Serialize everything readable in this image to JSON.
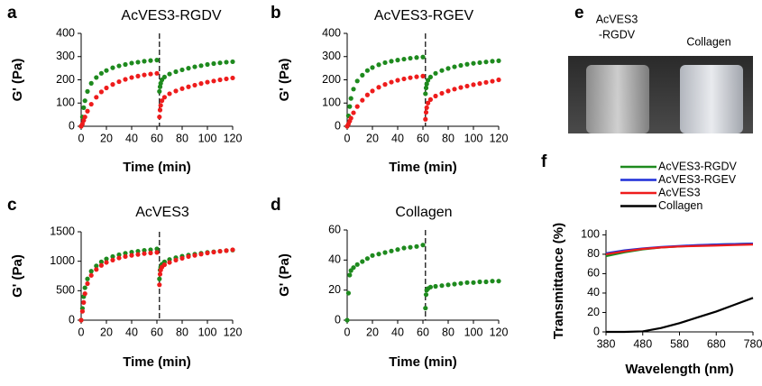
{
  "chart_data": [
    {
      "type": "scatter",
      "panel": "a",
      "title": "AcVES3-RGDV",
      "xlabel": "Time (min)",
      "ylabel": "G' (Pa)",
      "xlim": [
        0,
        120
      ],
      "ylim": [
        0,
        400
      ],
      "xticks": [
        0,
        20,
        40,
        60,
        80,
        100,
        120
      ],
      "yticks": [
        0,
        100,
        200,
        300,
        400
      ],
      "vline": 62,
      "x": [
        0,
        1,
        2,
        3,
        5,
        8,
        12,
        16,
        20,
        25,
        30,
        35,
        40,
        45,
        50,
        55,
        60,
        62,
        62.5,
        63,
        64,
        66,
        70,
        75,
        80,
        85,
        90,
        95,
        100,
        105,
        110,
        115,
        120
      ],
      "series": [
        {
          "color": "#1e8a1e",
          "values": [
            0,
            40,
            80,
            110,
            150,
            185,
            210,
            228,
            240,
            252,
            260,
            266,
            272,
            276,
            280,
            283,
            285,
            150,
            170,
            185,
            200,
            212,
            225,
            235,
            243,
            250,
            256,
            261,
            266,
            270,
            273,
            276,
            278
          ]
        },
        {
          "color": "#ee1c1c",
          "values": [
            0,
            10,
            25,
            40,
            65,
            95,
            125,
            148,
            165,
            180,
            192,
            202,
            210,
            216,
            221,
            225,
            228,
            40,
            70,
            90,
            110,
            125,
            140,
            152,
            162,
            170,
            177,
            184,
            190,
            195,
            200,
            204,
            208
          ]
        }
      ]
    },
    {
      "type": "scatter",
      "panel": "b",
      "title": "AcVES3-RGEV",
      "xlabel": "Time (min)",
      "ylabel": "G' (Pa)",
      "xlim": [
        0,
        120
      ],
      "ylim": [
        0,
        400
      ],
      "xticks": [
        0,
        20,
        40,
        60,
        80,
        100,
        120
      ],
      "yticks": [
        0,
        100,
        200,
        300,
        400
      ],
      "vline": 62,
      "x": [
        0,
        1,
        2,
        3,
        5,
        8,
        12,
        16,
        20,
        25,
        30,
        35,
        40,
        45,
        50,
        55,
        60,
        62,
        62.5,
        63,
        64,
        66,
        70,
        75,
        80,
        85,
        90,
        95,
        100,
        105,
        110,
        115,
        120
      ],
      "series": [
        {
          "color": "#1e8a1e",
          "values": [
            0,
            45,
            85,
            120,
            160,
            195,
            220,
            240,
            253,
            265,
            274,
            280,
            285,
            289,
            293,
            296,
            298,
            140,
            165,
            182,
            198,
            212,
            228,
            240,
            249,
            256,
            262,
            267,
            271,
            274,
            277,
            280,
            282
          ]
        },
        {
          "color": "#ee1c1c",
          "values": [
            0,
            10,
            22,
            35,
            58,
            85,
            112,
            135,
            152,
            168,
            180,
            190,
            198,
            204,
            209,
            213,
            216,
            30,
            60,
            80,
            100,
            115,
            130,
            142,
            152,
            160,
            167,
            173,
            179,
            184,
            189,
            194,
            200
          ]
        }
      ]
    },
    {
      "type": "scatter",
      "panel": "c",
      "title": "AcVES3",
      "xlabel": "Time (min)",
      "ylabel": "G' (Pa)",
      "xlim": [
        0,
        120
      ],
      "ylim": [
        0,
        1500
      ],
      "xticks": [
        0,
        20,
        40,
        60,
        80,
        100,
        120
      ],
      "yticks": [
        0,
        500,
        1000,
        1500
      ],
      "vline": 62,
      "x": [
        0,
        1,
        2,
        3,
        5,
        8,
        12,
        16,
        20,
        25,
        30,
        35,
        40,
        45,
        50,
        55,
        60,
        62,
        62.5,
        63,
        64,
        66,
        70,
        75,
        80,
        85,
        90,
        95,
        100,
        105,
        110,
        115,
        120
      ],
      "series": [
        {
          "color": "#1e8a1e",
          "values": [
            0,
            200,
            400,
            550,
            700,
            830,
            920,
            990,
            1040,
            1080,
            1110,
            1135,
            1155,
            1170,
            1185,
            1195,
            1210,
            700,
            850,
            900,
            950,
            990,
            1030,
            1060,
            1085,
            1105,
            1120,
            1135,
            1150,
            1160,
            1170,
            1180,
            1190
          ]
        },
        {
          "color": "#ee1c1c",
          "values": [
            0,
            150,
            300,
            450,
            620,
            760,
            860,
            930,
            980,
            1020,
            1055,
            1080,
            1100,
            1115,
            1130,
            1140,
            1150,
            600,
            780,
            850,
            900,
            940,
            980,
            1020,
            1050,
            1080,
            1100,
            1120,
            1140,
            1155,
            1170,
            1180,
            1195
          ]
        }
      ]
    },
    {
      "type": "scatter",
      "panel": "d",
      "title": "Collagen",
      "xlabel": "Time (min)",
      "ylabel": "G' (Pa)",
      "xlim": [
        0,
        120
      ],
      "ylim": [
        0,
        60
      ],
      "xticks": [
        0,
        20,
        40,
        60,
        80,
        100,
        120
      ],
      "yticks": [
        0,
        20,
        40,
        60
      ],
      "vline": 62,
      "x": [
        0,
        1,
        2,
        3,
        5,
        8,
        12,
        16,
        20,
        25,
        30,
        35,
        40,
        45,
        50,
        55,
        60,
        62,
        62.5,
        63,
        64,
        66,
        70,
        75,
        80,
        85,
        90,
        95,
        100,
        105,
        110,
        115,
        120
      ],
      "series": [
        {
          "color": "#1e8a1e",
          "values": [
            0,
            18,
            30,
            33,
            35,
            37,
            39,
            41,
            43,
            44,
            45,
            46,
            47,
            48,
            48.5,
            49,
            50,
            8,
            17,
            20,
            21,
            22,
            22.5,
            23,
            23.5,
            24,
            24.5,
            25,
            25,
            25.5,
            25.5,
            26,
            26
          ]
        }
      ]
    },
    {
      "type": "line",
      "panel": "f",
      "xlabel": "Wavelength (nm)",
      "ylabel": "Transmittance (%)",
      "xlim": [
        380,
        780
      ],
      "ylim": [
        0,
        105
      ],
      "xticks": [
        380,
        480,
        580,
        680,
        780
      ],
      "yticks": [
        0,
        20,
        40,
        60,
        80,
        100
      ],
      "x": [
        380,
        430,
        480,
        530,
        580,
        630,
        680,
        730,
        780
      ],
      "series": [
        {
          "name": "AcVES3-RGDV",
          "color": "#1e8a1e",
          "values": [
            78,
            82,
            85,
            87,
            88,
            89,
            90,
            90.5,
            91
          ]
        },
        {
          "name": "AcVES3-RGEV",
          "color": "#1f2fd8",
          "values": [
            81,
            84,
            86,
            87.5,
            88.5,
            89.5,
            90,
            90.5,
            91
          ]
        },
        {
          "name": "AcVES3",
          "color": "#ee1c1c",
          "values": [
            80,
            83,
            85.5,
            87,
            88,
            88.5,
            89,
            89.5,
            90
          ]
        },
        {
          "name": "Collagen",
          "color": "#000000",
          "values": [
            0,
            0,
            0.5,
            4,
            9,
            15,
            21,
            28,
            35
          ]
        }
      ]
    }
  ],
  "photo": {
    "panel": "e",
    "labels": [
      [
        "AcVES3",
        "-RGDV"
      ],
      [
        "Collagen"
      ]
    ]
  }
}
